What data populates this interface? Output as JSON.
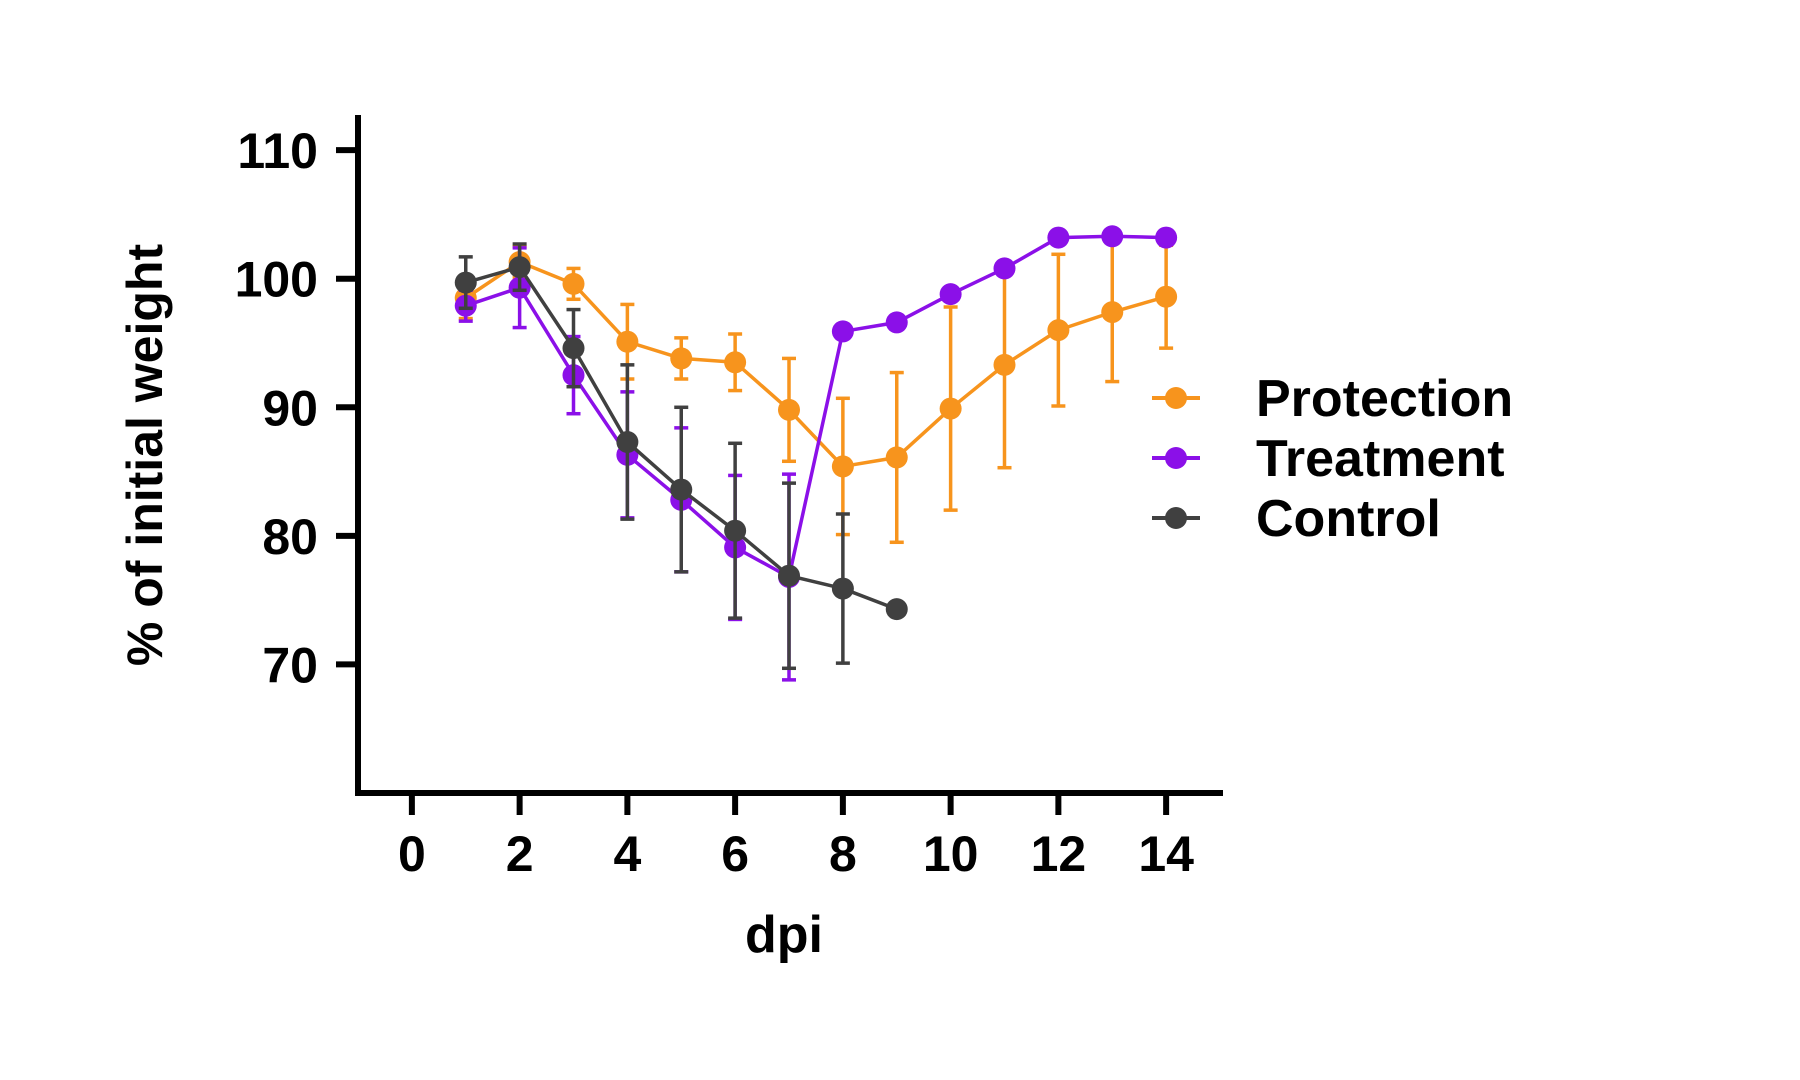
{
  "chart_data": {
    "type": "line",
    "xlabel": "dpi",
    "ylabel": "% of initial weight",
    "xlim": [
      -1,
      15
    ],
    "ylim": [
      60,
      112.5
    ],
    "xticks": [
      0,
      2,
      4,
      6,
      8,
      10,
      12,
      14
    ],
    "yticks": [
      70,
      80,
      90,
      100,
      110
    ],
    "legend_position": "right",
    "grid": false,
    "series": [
      {
        "name": "Protection",
        "color": "#F7941D",
        "x": [
          1,
          2,
          3,
          4,
          5,
          6,
          7,
          8,
          9,
          10,
          11,
          12,
          13,
          14
        ],
        "y": [
          98.5,
          101.3,
          99.6,
          95.1,
          93.8,
          93.5,
          89.8,
          85.4,
          86.1,
          89.9,
          93.3,
          96.0,
          97.4,
          98.6
        ],
        "err": [
          1.6,
          1.2,
          1.2,
          2.9,
          1.6,
          2.2,
          4.0,
          5.3,
          6.6,
          7.9,
          8.0,
          5.9,
          5.4,
          4.0
        ]
      },
      {
        "name": "Treatment",
        "color": "#8B10E8",
        "x": [
          1,
          2,
          3,
          4,
          5,
          6,
          7,
          8,
          9,
          10,
          11,
          12,
          13,
          14
        ],
        "y": [
          97.9,
          99.3,
          92.5,
          86.3,
          82.8,
          79.1,
          76.8,
          95.9,
          96.6,
          98.8,
          100.8,
          103.2,
          103.3,
          103.2
        ],
        "err": [
          1.2,
          3.1,
          3.0,
          4.9,
          5.6,
          5.6,
          8.0,
          null,
          null,
          null,
          null,
          null,
          null,
          null
        ]
      },
      {
        "name": "Control",
        "color": "#404040",
        "x": [
          1,
          2,
          3,
          4,
          5,
          6,
          7,
          8,
          9
        ],
        "y": [
          99.7,
          100.9,
          94.6,
          87.3,
          83.6,
          80.4,
          76.9,
          75.9,
          74.3
        ],
        "err": [
          2.0,
          1.8,
          3.0,
          6.0,
          6.4,
          6.8,
          7.2,
          5.8,
          null
        ]
      }
    ]
  }
}
